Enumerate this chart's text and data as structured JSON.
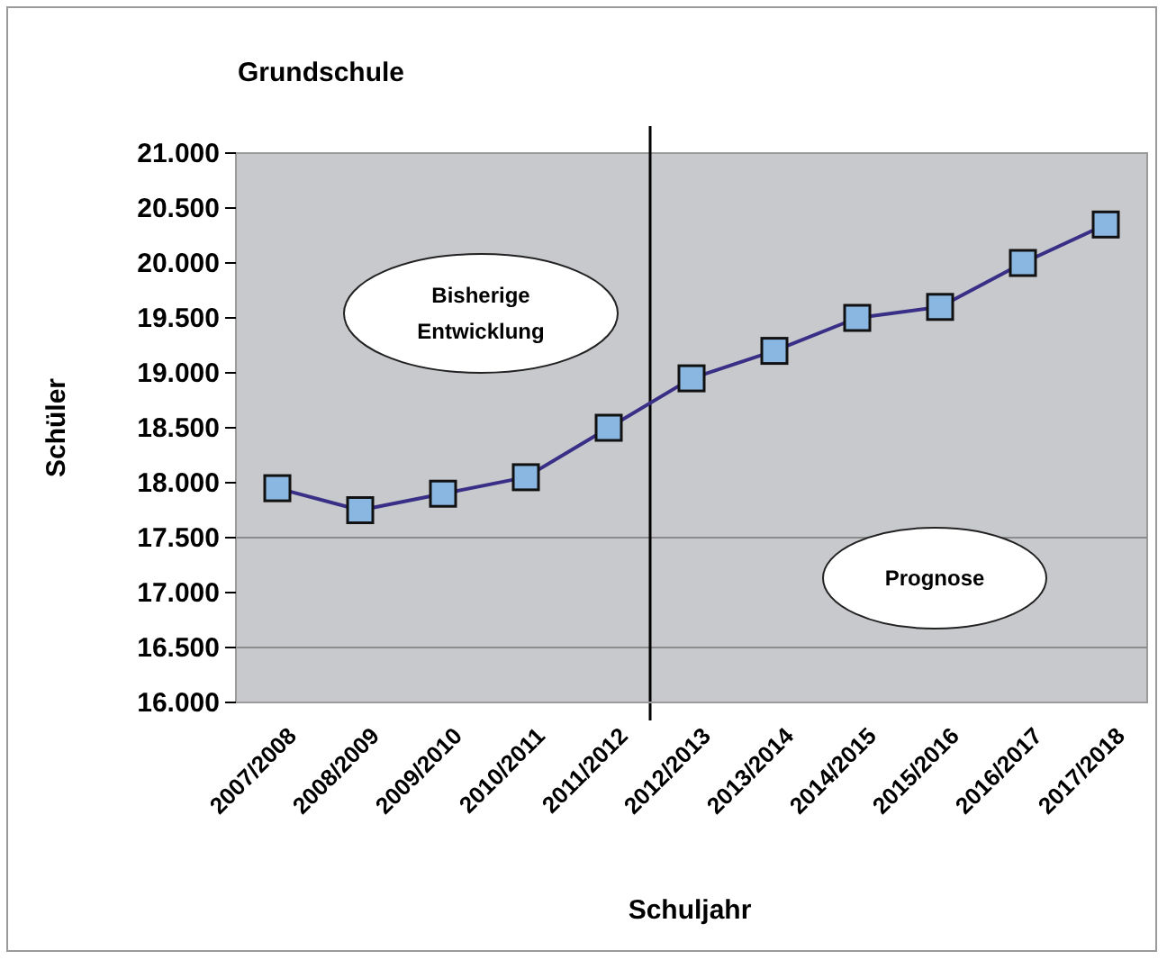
{
  "chart_data": {
    "type": "line",
    "title": "Grundschule",
    "xlabel": "Schuljahr",
    "ylabel": "Schüler",
    "categories": [
      "2007/2008",
      "2008/2009",
      "2009/2010",
      "2010/2011",
      "2011/2012",
      "2012/2013",
      "2013/2014",
      "2014/2015",
      "2015/2016",
      "2016/2017",
      "2017/2018"
    ],
    "series": [
      {
        "color": "#3a2f86",
        "values": [
          17950,
          17750,
          17900,
          18050,
          18500,
          18950,
          19200,
          19500,
          19600,
          20000,
          20350
        ]
      }
    ],
    "marker": "square",
    "line_style": "solid",
    "grid": false,
    "ylim": [
      16000,
      21000
    ],
    "yticks": [
      {
        "value": 16000,
        "label": "16.000"
      },
      {
        "value": 16500,
        "label": "16.500"
      },
      {
        "value": 17000,
        "label": "17.000"
      },
      {
        "value": 17500,
        "label": "17.500"
      },
      {
        "value": 18000,
        "label": "18.000"
      },
      {
        "value": 18500,
        "label": "18.500"
      },
      {
        "value": 19000,
        "label": "19.000"
      },
      {
        "value": 19500,
        "label": "19.500"
      },
      {
        "value": 20000,
        "label": "20.000"
      },
      {
        "value": 20500,
        "label": "20.500"
      },
      {
        "value": 21000,
        "label": "21.000"
      }
    ],
    "ref_lines": [
      {
        "axis": "y",
        "value": 17500,
        "color": "#8c8c8c"
      },
      {
        "axis": "y",
        "value": 16500,
        "color": "#8c8c8c"
      },
      {
        "axis": "x",
        "value": "2012/2013",
        "color": "#000000"
      }
    ],
    "annotations": [
      "Bisherige Entwicklung",
      "Prognose"
    ]
  }
}
